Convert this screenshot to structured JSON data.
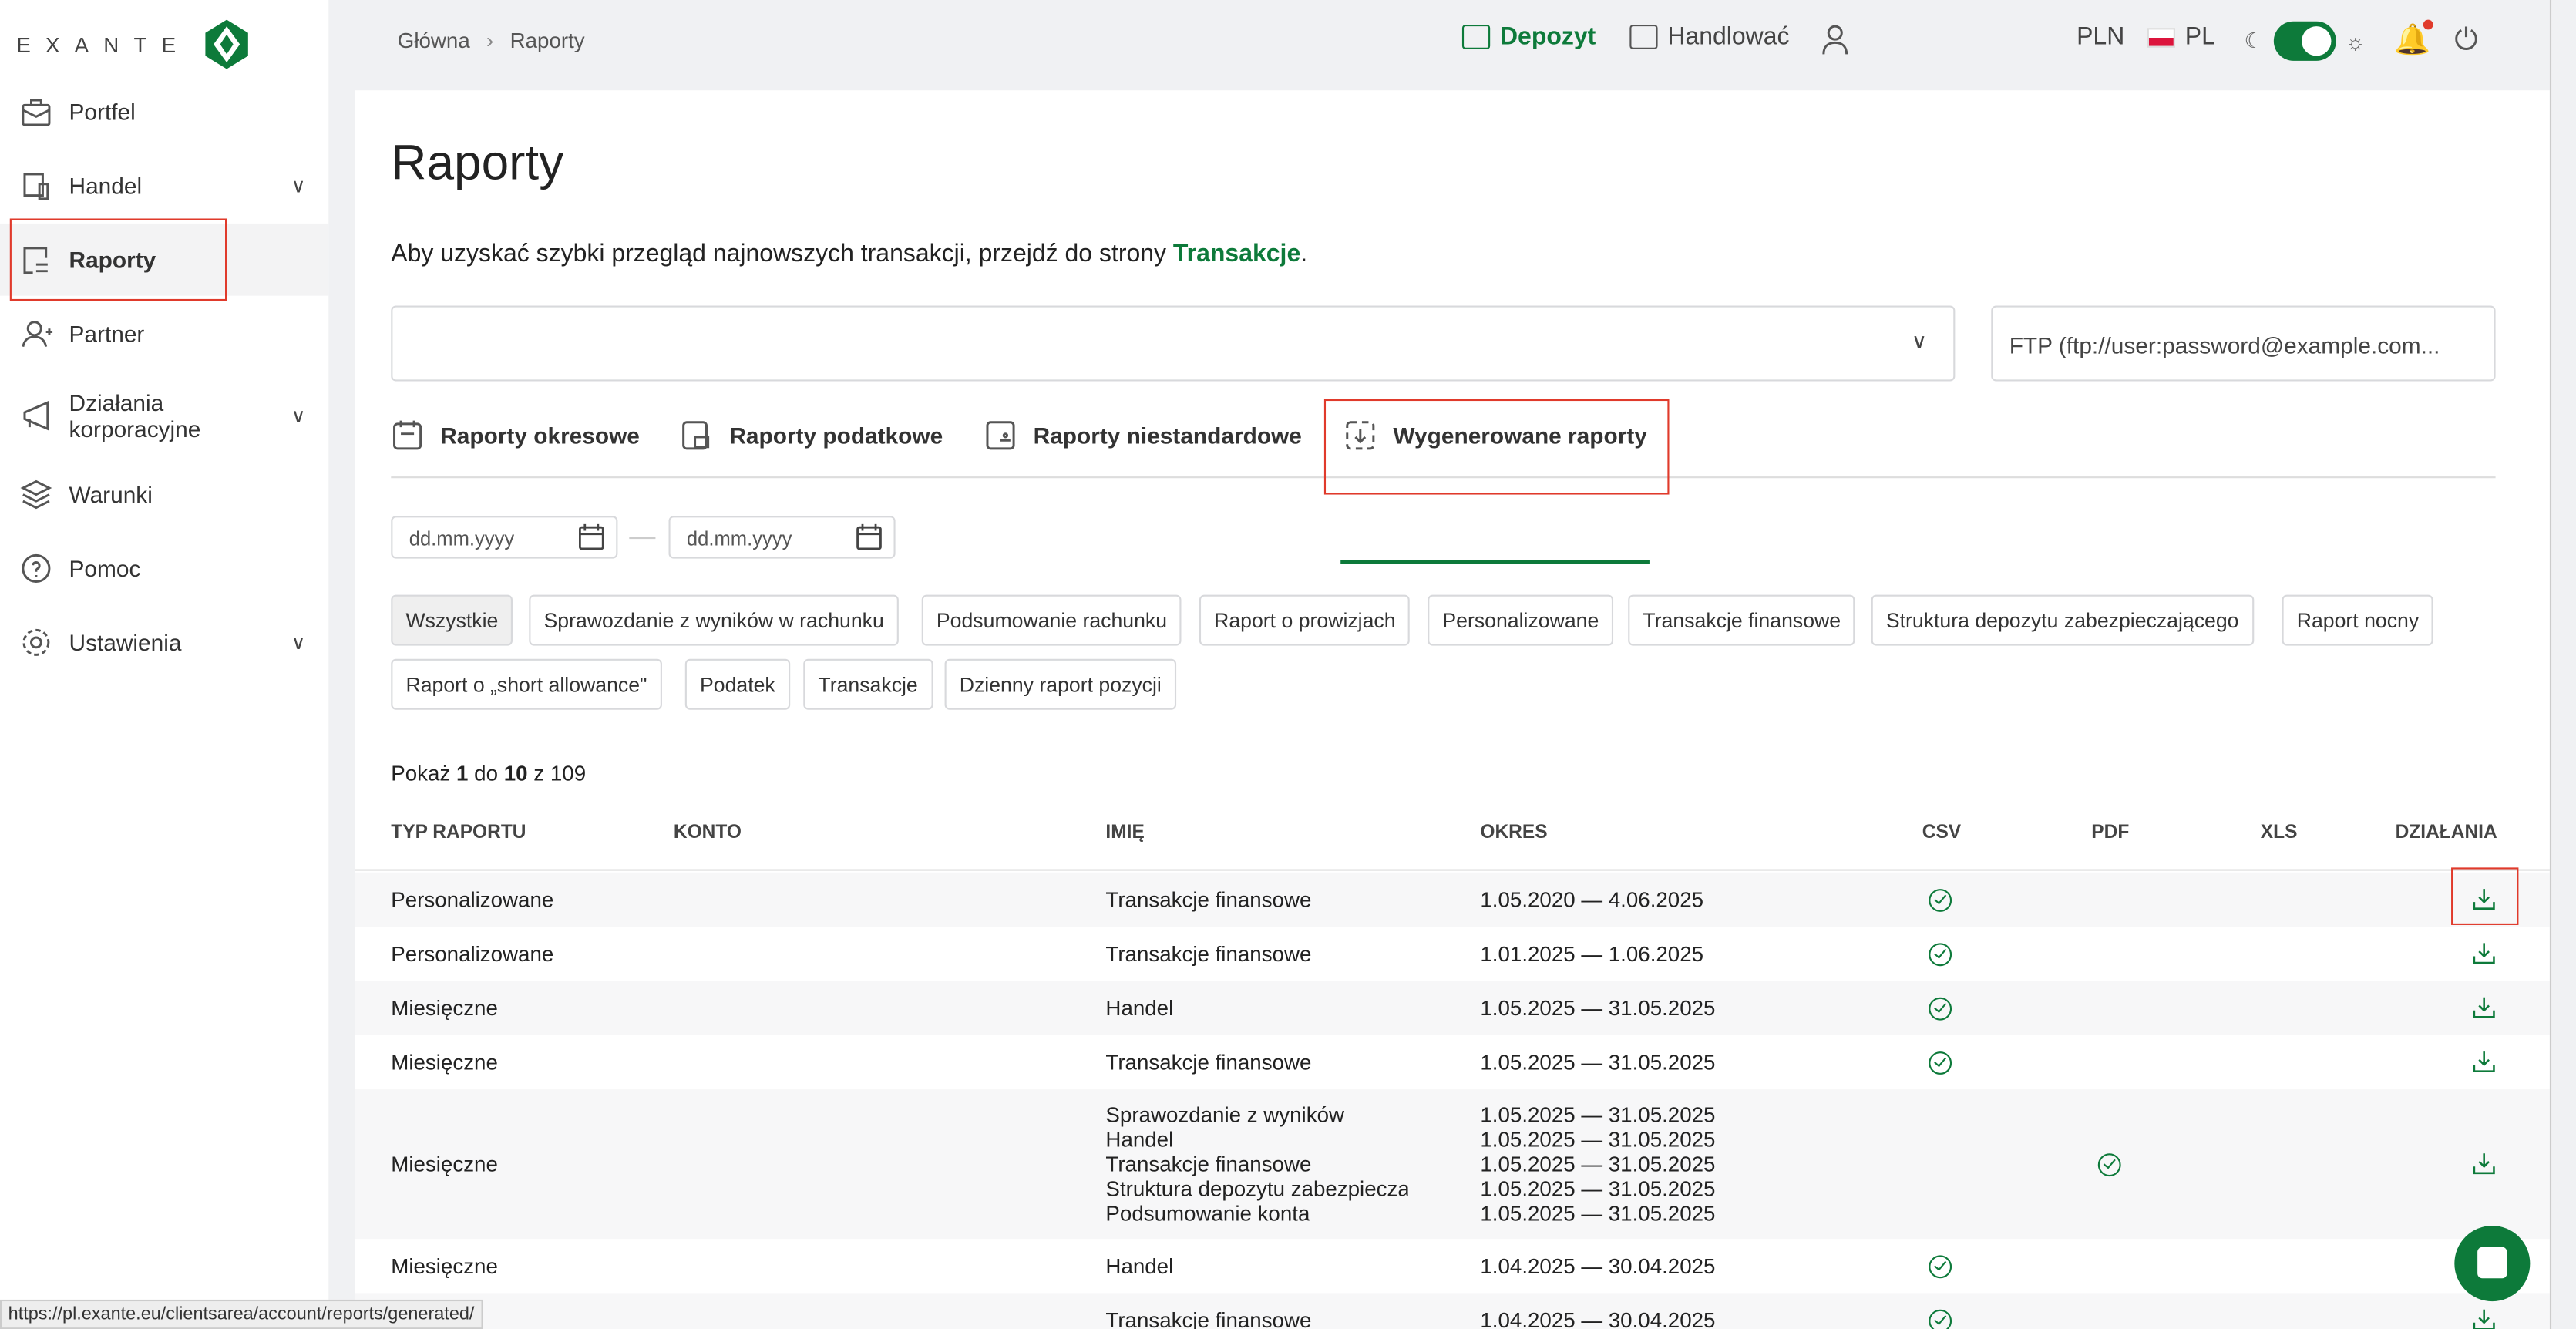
{
  "brand": "EXANTE",
  "sidebar": {
    "items": [
      {
        "label": "Portfel"
      },
      {
        "label": "Handel"
      },
      {
        "label": "Raporty"
      },
      {
        "label": "Partner"
      },
      {
        "label": "Działania korporacyjne"
      },
      {
        "label": "Warunki"
      },
      {
        "label": "Pomoc"
      },
      {
        "label": "Ustawienia"
      }
    ]
  },
  "breadcrumb": [
    "Główna",
    "Raporty"
  ],
  "topbar": {
    "deposit": "Depozyt",
    "trade": "Handlować",
    "currency": "PLN",
    "language": "PL",
    "theme_toggle_on": true
  },
  "colors": {
    "accent": "#0d7a3a",
    "highlight": "#e03a2b"
  },
  "page": {
    "title": "Raporty",
    "intro": "Aby uzyskać szybki przegląd najnowszych transakcji, przejdź do strony ",
    "intro_link": "Transakcje",
    "intro_end": ".",
    "account_select": "",
    "ftp_placeholder": "FTP (ftp://user:password@example.com..."
  },
  "tabs": [
    {
      "label": "Raporty okresowe"
    },
    {
      "label": "Raporty podatkowe"
    },
    {
      "label": "Raporty niestandardowe"
    },
    {
      "label": "Wygenerowane raporty",
      "active": true
    }
  ],
  "dates": {
    "from": "dd.mm.yyyy",
    "to": "dd.mm.yyyy"
  },
  "filters": [
    "Wszystkie",
    "Sprawozdanie z wyników w rachunku",
    "Podsumowanie rachunku",
    "Raport o prowizjach",
    "Personalizowane",
    "Transakcje finansowe",
    "Struktura depozytu zabezpieczającego",
    "Raport nocny",
    "Raport o „short allowance\"",
    "Podatek",
    "Transakcje",
    "Dzienny raport pozycji"
  ],
  "pagination": {
    "prefix": "Pokaż",
    "from": "1",
    "mid": "do",
    "to": "10",
    "of": "z",
    "total": "109"
  },
  "table": {
    "headers": [
      "TYP RAPORTU",
      "KONTO",
      "IMIĘ",
      "OKRES",
      "CSV",
      "PDF",
      "XLS",
      "DZIAŁANIA"
    ],
    "rows": [
      {
        "type": "Personalizowane",
        "account": "",
        "names": [
          "Transakcje finansowe"
        ],
        "periods": [
          "1.05.2020 — 4.06.2025"
        ],
        "csv": true,
        "pdf": false,
        "xls": false
      },
      {
        "type": "Personalizowane",
        "account": "",
        "names": [
          "Transakcje finansowe"
        ],
        "periods": [
          "1.01.2025 — 1.06.2025"
        ],
        "csv": true,
        "pdf": false,
        "xls": false
      },
      {
        "type": "Miesięczne",
        "account": "",
        "names": [
          "Handel"
        ],
        "periods": [
          "1.05.2025 — 31.05.2025"
        ],
        "csv": true,
        "pdf": false,
        "xls": false
      },
      {
        "type": "Miesięczne",
        "account": "",
        "names": [
          "Transakcje finansowe"
        ],
        "periods": [
          "1.05.2025 — 31.05.2025"
        ],
        "csv": true,
        "pdf": false,
        "xls": false
      },
      {
        "type": "Miesięczne",
        "account": "",
        "names": [
          "Sprawozdanie z wyników",
          "Handel",
          "Transakcje finansowe",
          "Struktura depozytu zabezpiecza",
          "Podsumowanie konta"
        ],
        "periods": [
          "1.05.2025 — 31.05.2025",
          "1.05.2025 — 31.05.2025",
          "1.05.2025 — 31.05.2025",
          "1.05.2025 — 31.05.2025",
          "1.05.2025 — 31.05.2025"
        ],
        "csv": false,
        "pdf": true,
        "xls": false
      },
      {
        "type": "Miesięczne",
        "account": "",
        "names": [
          "Handel"
        ],
        "periods": [
          "1.04.2025 — 30.04.2025"
        ],
        "csv": true,
        "pdf": false,
        "xls": false
      },
      {
        "type": "",
        "account": "",
        "names": [
          "Transakcje finansowe"
        ],
        "periods": [
          "1.04.2025 — 30.04.2025"
        ],
        "csv": true,
        "pdf": false,
        "xls": false
      }
    ]
  },
  "status_url": "https://pl.exante.eu/clientsarea/account/reports/generated/"
}
